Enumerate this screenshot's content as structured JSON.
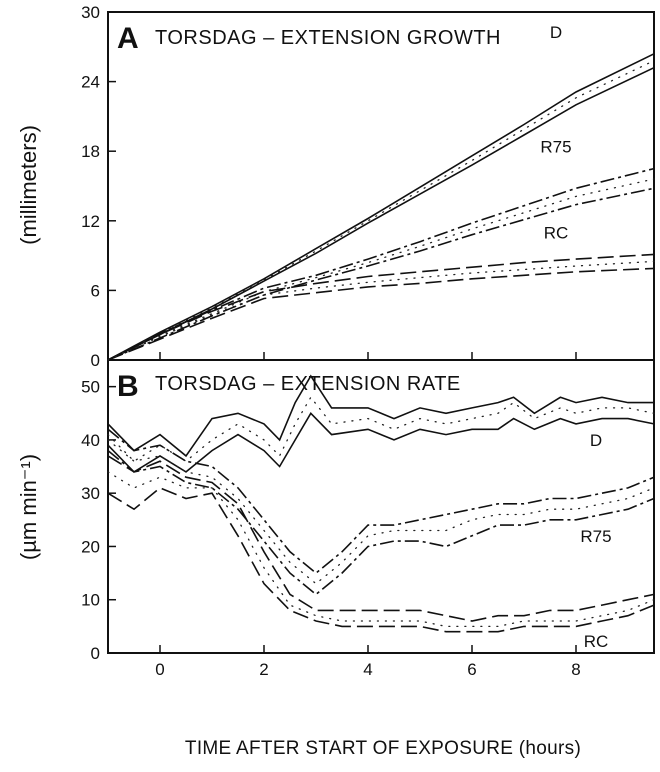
{
  "chart_data": [
    {
      "type": "line",
      "panel": "A",
      "title": "TORSDAG – EXTENSION GROWTH",
      "ylabel": "(millimeters)",
      "xlabel": "TIME AFTER START OF EXPOSURE (hours)",
      "xlim": [
        -1,
        9.5
      ],
      "ylim": [
        0,
        30
      ],
      "yticks": [
        0,
        6,
        12,
        18,
        24,
        30
      ],
      "xticks": [
        0,
        2,
        4,
        6,
        8
      ],
      "series": [
        {
          "name": "D",
          "x": [
            -1,
            0,
            1,
            2,
            3,
            4,
            5,
            6,
            7,
            8,
            9.5
          ],
          "mean": [
            0,
            2.3,
            4.5,
            6.9,
            9.4,
            12.0,
            14.6,
            17.2,
            19.9,
            22.6,
            25.8
          ],
          "upper": [
            0,
            2.4,
            4.6,
            7.0,
            9.6,
            12.2,
            14.9,
            17.6,
            20.3,
            23.1,
            26.4
          ],
          "lower": [
            0,
            2.2,
            4.4,
            6.8,
            9.2,
            11.8,
            14.3,
            16.8,
            19.4,
            22.0,
            25.2
          ]
        },
        {
          "name": "R75",
          "x": [
            -1,
            0,
            1,
            2,
            3,
            4,
            5,
            6,
            7,
            8,
            9.5
          ],
          "mean": [
            0,
            2.1,
            4.0,
            5.9,
            7.1,
            8.4,
            9.8,
            11.3,
            12.7,
            14.1,
            15.6
          ],
          "upper": [
            0,
            2.3,
            4.3,
            6.2,
            7.3,
            8.7,
            10.2,
            11.8,
            13.3,
            14.8,
            16.5
          ],
          "lower": [
            0,
            1.9,
            3.8,
            5.6,
            6.9,
            8.1,
            9.4,
            10.8,
            12.1,
            13.4,
            14.8
          ]
        },
        {
          "name": "RC",
          "x": [
            -1,
            0,
            1,
            2,
            3,
            4,
            5,
            6,
            7,
            8,
            9.5
          ],
          "mean": [
            0,
            2.0,
            3.9,
            5.6,
            6.2,
            6.7,
            7.1,
            7.5,
            7.8,
            8.1,
            8.5
          ],
          "upper": [
            0,
            2.2,
            4.2,
            5.9,
            6.6,
            7.2,
            7.6,
            8.0,
            8.4,
            8.7,
            9.1
          ],
          "lower": [
            0,
            1.8,
            3.6,
            5.3,
            5.8,
            6.3,
            6.6,
            7.0,
            7.3,
            7.6,
            7.9
          ]
        }
      ]
    },
    {
      "type": "line",
      "panel": "B",
      "title": "TORSDAG – EXTENSION RATE",
      "ylabel": "(µm min⁻¹)",
      "xlabel": "TIME AFTER START OF EXPOSURE (hours)",
      "xlim": [
        -1,
        9.5
      ],
      "ylim": [
        0,
        55
      ],
      "yticks": [
        0,
        10,
        20,
        30,
        40,
        50
      ],
      "xticks": [
        0,
        2,
        4,
        6,
        8
      ],
      "series": [
        {
          "name": "D",
          "x": [
            -1,
            -0.5,
            0,
            0.5,
            1,
            1.5,
            2,
            2.3,
            2.6,
            2.9,
            3.3,
            4,
            4.5,
            5,
            5.5,
            6,
            6.5,
            6.8,
            7.2,
            7.7,
            8,
            8.5,
            9,
            9.5
          ],
          "upper": [
            43,
            38,
            41,
            37,
            44,
            45,
            43,
            40,
            47,
            52,
            46,
            46,
            44,
            46,
            45,
            46,
            47,
            48,
            45,
            48,
            47,
            48,
            47,
            47
          ],
          "mean": [
            41,
            36,
            39,
            36,
            40,
            43,
            40,
            37,
            43,
            48,
            43,
            44,
            42,
            44,
            43,
            44,
            45,
            47,
            44,
            46,
            45,
            46,
            46,
            45
          ],
          "lower": [
            39,
            34,
            37,
            34,
            38,
            41,
            38,
            35,
            40,
            45,
            41,
            42,
            40,
            42,
            41,
            42,
            42,
            44,
            42,
            44,
            43,
            44,
            44,
            43
          ]
        },
        {
          "name": "R75",
          "x": [
            -1,
            -0.5,
            0,
            0.5,
            1,
            1.5,
            2,
            2.5,
            3,
            3.5,
            4,
            4.5,
            5,
            5.5,
            6,
            6.5,
            7,
            7.5,
            8,
            8.5,
            9,
            9.5
          ],
          "upper": [
            42,
            38,
            39,
            36,
            35,
            31,
            25,
            19,
            15,
            19,
            24,
            24,
            25,
            26,
            27,
            28,
            28,
            29,
            29,
            30,
            31,
            33
          ],
          "mean": [
            40,
            36,
            37,
            34,
            33,
            29,
            23,
            17,
            13,
            17,
            22,
            23,
            23,
            23,
            25,
            26,
            26,
            27,
            27,
            28,
            29,
            31
          ],
          "lower": [
            38,
            34,
            35,
            32,
            31,
            27,
            21,
            15,
            11,
            15,
            20,
            21,
            21,
            20,
            22,
            24,
            24,
            25,
            25,
            26,
            27,
            29
          ]
        },
        {
          "name": "RC",
          "x": [
            -1,
            -0.5,
            0,
            0.5,
            1,
            1.5,
            2,
            2.5,
            3,
            3.5,
            4,
            4.5,
            5,
            5.5,
            6,
            6.5,
            7,
            7.5,
            8,
            8.5,
            9,
            9.5
          ],
          "upper": [
            37,
            34,
            36,
            33,
            32,
            28,
            19,
            11,
            8,
            8,
            8,
            8,
            8,
            7,
            6,
            7,
            7,
            8,
            8,
            9,
            10,
            11
          ],
          "mean": [
            34,
            31,
            33,
            31,
            31,
            25,
            16,
            9,
            7,
            6,
            6,
            6,
            6,
            5,
            5,
            5,
            6,
            6,
            6,
            7,
            8,
            10
          ],
          "lower": [
            30,
            27,
            31,
            29,
            30,
            22,
            13,
            8,
            6,
            5,
            5,
            5,
            5,
            4,
            4,
            4,
            5,
            5,
            5,
            6,
            7,
            9
          ]
        }
      ]
    }
  ],
  "panels": {
    "a_letter": "A",
    "b_letter": "B"
  }
}
